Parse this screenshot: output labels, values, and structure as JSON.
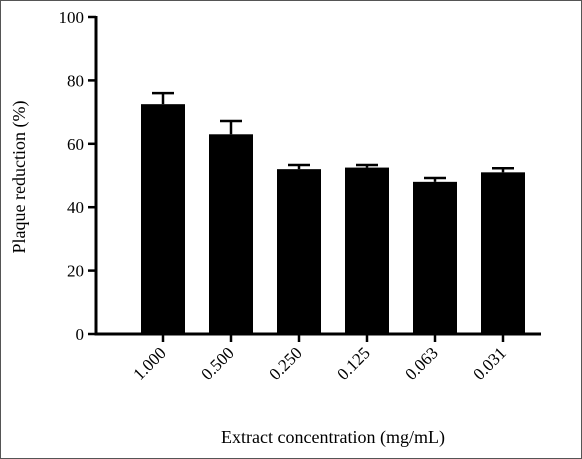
{
  "chart_data": {
    "type": "bar",
    "title": "",
    "xlabel": "Extract concentration (mg/mL)",
    "ylabel": "Plaque reduction (%)",
    "categories": [
      "1.000",
      "0.500",
      "0.250",
      "0.125",
      "0.063",
      "0.031"
    ],
    "series": [
      {
        "values": [
          72.5,
          63.0,
          52.0,
          52.5,
          48.0,
          51.0
        ],
        "error": [
          3.5,
          4.2,
          1.3,
          0.8,
          1.2,
          1.3
        ]
      }
    ],
    "ylim": [
      0,
      100
    ],
    "yticks": [
      0,
      20,
      40,
      60,
      80,
      100
    ],
    "grid": false,
    "error_bars": "upper caps",
    "bar_color": "#000000"
  }
}
